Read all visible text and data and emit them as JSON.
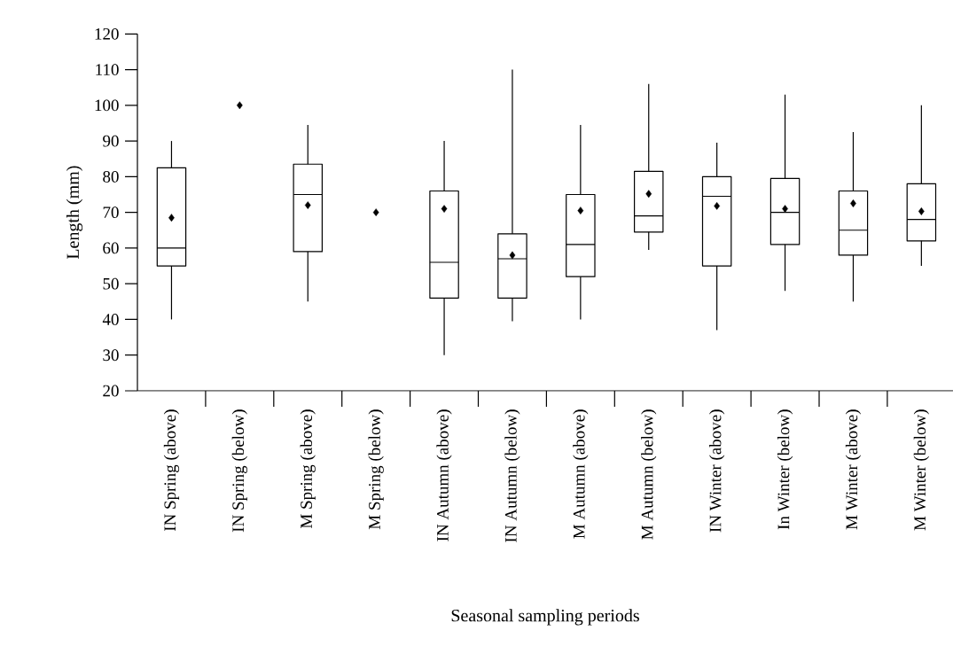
{
  "chart_data": {
    "type": "box",
    "xlabel": "Seasonal sampling periods",
    "ylabel": "Length (mm)",
    "categories": [
      "IN Spring (above)",
      "IN Spring (below)",
      "M Spring (above)",
      "M Spring (below)",
      "IN Autumn (above)",
      "IN Autumn (below)",
      "M Autumn (above)",
      "M Autumn (below)",
      "IN Winter (above)",
      "In Winter (below)",
      "M Winter (above)",
      "M Winter (below)"
    ],
    "ylim": [
      20,
      120
    ],
    "yticks": [
      20,
      30,
      40,
      50,
      60,
      70,
      80,
      90,
      100,
      110,
      120
    ],
    "color": "#000000",
    "marker": "diamond",
    "boxes": [
      {
        "low": 40,
        "q1": 55,
        "median": 60,
        "q3": 82.5,
        "high": 90
      },
      null,
      {
        "low": 45,
        "q1": 59,
        "median": 75,
        "q3": 83.5,
        "high": 94.5
      },
      null,
      {
        "low": 30,
        "q1": 46,
        "median": 56,
        "q3": 76,
        "high": 90
      },
      {
        "low": 39.5,
        "q1": 46,
        "median": 57,
        "q3": 64,
        "high": 110
      },
      {
        "low": 40,
        "q1": 52,
        "median": 61,
        "q3": 75,
        "high": 94.5
      },
      {
        "low": 59.5,
        "q1": 64.5,
        "median": 69,
        "q3": 81.5,
        "high": 106
      },
      {
        "low": 37,
        "q1": 55,
        "median": 74.5,
        "q3": 80,
        "high": 89.5
      },
      {
        "low": 48,
        "q1": 61,
        "median": 70,
        "q3": 79.5,
        "high": 103
      },
      {
        "low": 45,
        "q1": 58,
        "median": 65,
        "q3": 76,
        "high": 92.5
      },
      {
        "low": 55,
        "q1": 62,
        "median": 68,
        "q3": 78,
        "high": 100
      }
    ],
    "series": [
      {
        "type": "scatter",
        "x": [
          "IN Spring (above)",
          "IN Spring (below)",
          "M Spring (above)",
          "M Spring (below)",
          "IN Autumn (above)",
          "IN Autumn (below)",
          "M Autumn (above)",
          "M Autumn (below)",
          "IN Winter (above)",
          "In Winter (below)",
          "M Winter (above)",
          "M Winter (below)"
        ],
        "values": [
          68.5,
          100,
          72,
          70,
          71,
          58,
          70.5,
          75.2,
          71.8,
          71,
          72.5,
          70.3
        ]
      }
    ]
  }
}
